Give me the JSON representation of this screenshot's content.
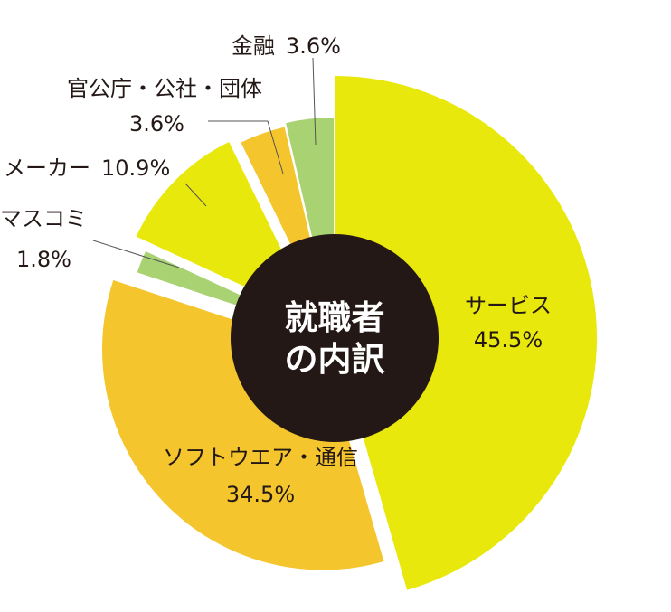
{
  "chart_data": {
    "type": "pie",
    "subtype": "exploded-donut",
    "title_lines": [
      "就職者",
      "の内訳"
    ],
    "slices": [
      {
        "name": "サービス",
        "value": 45.5,
        "label": "45.5%",
        "color": "#e8e80c"
      },
      {
        "name": "ソフトウエア・通信",
        "value": 34.5,
        "label": "34.5%",
        "color": "#f4c52c"
      },
      {
        "name": "マスコミ",
        "value": 1.8,
        "label": "1.8%",
        "color": "#a9d273"
      },
      {
        "name": "メーカー",
        "value": 10.9,
        "label": "10.9%",
        "color": "#e8e80c"
      },
      {
        "name": "官公庁・公社・団体",
        "value": 3.6,
        "label": "3.6%",
        "color": "#f4c52c"
      },
      {
        "name": "金融",
        "value": 3.6,
        "label": "3.6%",
        "color": "#a9d273"
      }
    ],
    "center_color": "#231815",
    "center_text_color": "#ffffff"
  }
}
